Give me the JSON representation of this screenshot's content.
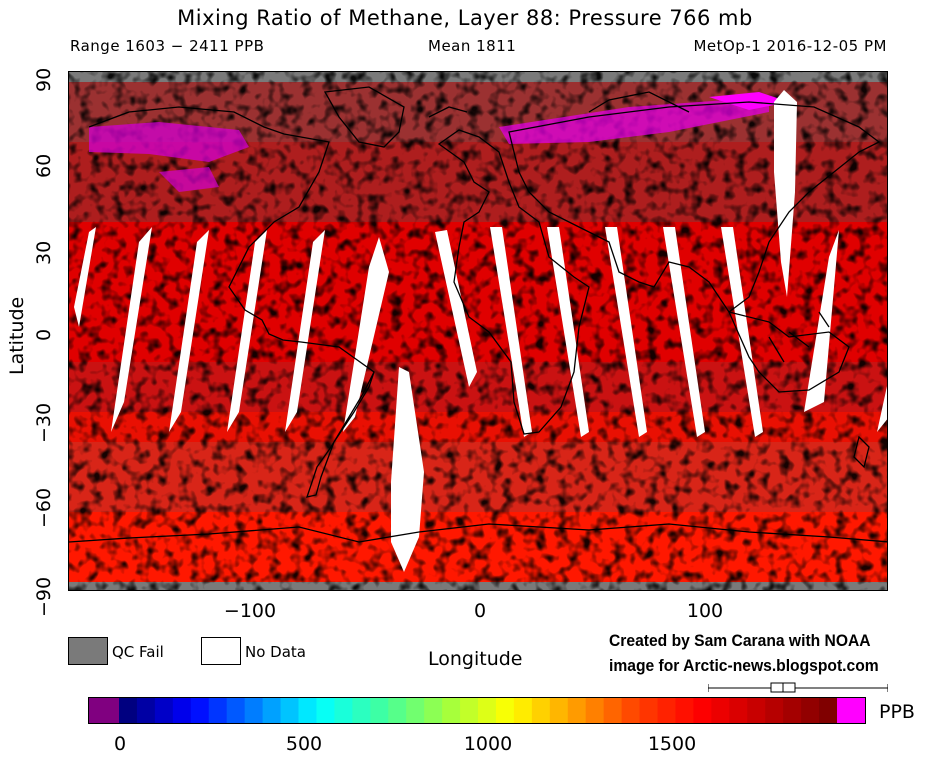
{
  "header": {
    "title": "Mixing Ratio of Methane, Layer 88: Pressure 766 mb",
    "range_label": "Range 1603 − 2411 PPB",
    "mean_label": "Mean 1811",
    "satellite_date": "MetOp-1 2016-12-05 PM"
  },
  "map": {
    "projection": "equirectangular",
    "lon_range": [
      -180,
      180
    ],
    "lat_range": [
      -90,
      90
    ],
    "x_ticks": [
      "−100",
      "0",
      "100"
    ],
    "x_tick_values": [
      -100,
      0,
      100
    ],
    "y_ticks": [
      "90",
      "60",
      "30",
      "0",
      "−30",
      "−60",
      "−90"
    ],
    "y_tick_values": [
      90,
      60,
      30,
      0,
      -30,
      -60,
      -90
    ],
    "xlabel": "Longitude",
    "ylabel": "Latitude",
    "colors": {
      "qc_fail": "#7a7a7a",
      "no_data": "#ffffff",
      "high": "#ff00ff"
    }
  },
  "legend": {
    "qc_fail_label": "QC Fail",
    "no_data_label": "No Data"
  },
  "credit": {
    "line1": "Created by Sam Carana with NOAA",
    "line2": "image for Arctic-news.blogspot.com"
  },
  "colorbar": {
    "ticks": [
      "0",
      "500",
      "1000",
      "1500"
    ],
    "tick_values": [
      0,
      500,
      1000,
      1500
    ],
    "unit": "PPB",
    "colors": [
      "#800080",
      "#000080",
      "#0000ff",
      "#0080ff",
      "#00ffff",
      "#40ffa0",
      "#a0ff40",
      "#ffff00",
      "#ffa000",
      "#ff4000",
      "#ff0000",
      "#c00000",
      "#800000",
      "#ff00ff"
    ]
  }
}
